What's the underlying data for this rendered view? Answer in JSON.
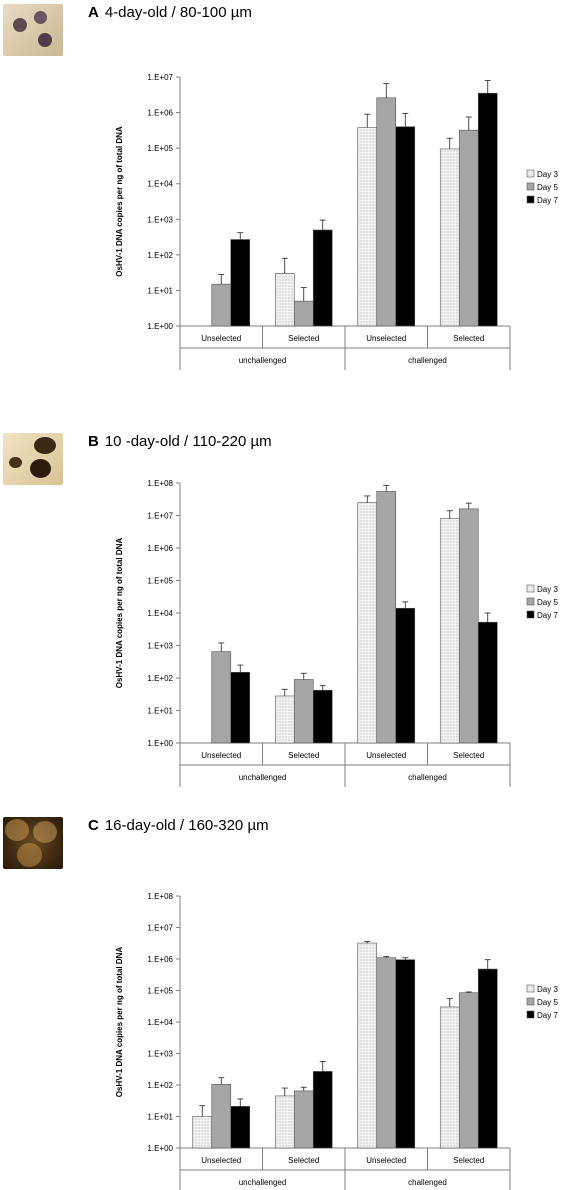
{
  "panels": [
    {
      "letter": "A",
      "title": "4-day-old / 80-100 µm",
      "ylabel": "OsHV-1 DNA copies per  ng of total DNA",
      "yticks": [
        "1.E+00",
        "1.E+01",
        "1.E+02",
        "1.E+03",
        "1.E+04",
        "1.E+05",
        "1.E+06",
        "1.E+07"
      ],
      "legend": [
        "Day 3",
        "Day 5",
        "Day 7"
      ]
    },
    {
      "letter": "B",
      "title": "10 -day-old / 110-220 µm",
      "ylabel": "OsHV-1 DNA copies per  ng of total DNA",
      "yticks": [
        "1.E+00",
        "1.E+01",
        "1.E+02",
        "1.E+03",
        "1.E+04",
        "1.E+05",
        "1.E+06",
        "1.E+07",
        "1.E+08"
      ],
      "legend": [
        "Day 3",
        "Day 5",
        "Day 7"
      ]
    },
    {
      "letter": "C",
      "title": "16-day-old / 160-320 µm",
      "ylabel": "OsHV-1 DNA copies per  ng of total DNA",
      "yticks": [
        "1.E+00",
        "1.E+01",
        "1.E+02",
        "1.E+03",
        "1.E+04",
        "1.E+05",
        "1.E+06",
        "1.E+07",
        "1.E+08"
      ],
      "legend": [
        "Day 3",
        "Day 5",
        "Day 7"
      ]
    }
  ],
  "colors": {
    "day3": "#f2f2f2",
    "day5": "#a6a6a6",
    "day7": "#000000",
    "axis": "#7f7f7f",
    "text": "#000000"
  },
  "chart_data": [
    {
      "type": "bar",
      "title": "4-day-old / 80-100 µm",
      "ylabel": "OsHV-1 DNA copies per  ng of total DNA",
      "yscale": "log",
      "ylim": [
        1,
        10000000
      ],
      "categories": [
        "Unselected",
        "Selected",
        "Unselected",
        "Selected"
      ],
      "groups": [
        {
          "label": "unchallenged",
          "span": [
            0,
            1
          ]
        },
        {
          "label": "challenged",
          "span": [
            2,
            3
          ]
        }
      ],
      "legend_position": "right",
      "series": [
        {
          "name": "Day 3",
          "values": [
            null,
            30,
            380000,
            95000
          ],
          "errors": [
            null,
            80,
            900000,
            190000
          ]
        },
        {
          "name": "Day 5",
          "values": [
            15,
            5,
            2600000,
            320000
          ],
          "errors": [
            28,
            12,
            6500000,
            750000
          ]
        },
        {
          "name": "Day 7",
          "values": [
            270,
            500,
            400000,
            3500000
          ],
          "errors": [
            420,
            950,
            950000,
            8000000
          ]
        }
      ]
    },
    {
      "type": "bar",
      "title": "10 -day-old / 110-220 µm",
      "ylabel": "OsHV-1 DNA copies per  ng of total DNA",
      "yscale": "log",
      "ylim": [
        1,
        100000000
      ],
      "categories": [
        "Unselected",
        "Selected",
        "Unselected",
        "Selected"
      ],
      "groups": [
        {
          "label": "unchallenged",
          "span": [
            0,
            1
          ]
        },
        {
          "label": "challenged",
          "span": [
            2,
            3
          ]
        }
      ],
      "legend_position": "right",
      "series": [
        {
          "name": "Day 3",
          "values": [
            null,
            28,
            25000000,
            8000000
          ],
          "errors": [
            null,
            45,
            40000000,
            14000000
          ]
        },
        {
          "name": "Day 5",
          "values": [
            650,
            90,
            55000000,
            16000000
          ],
          "errors": [
            1200,
            140,
            85000000,
            24000000
          ]
        },
        {
          "name": "Day 7",
          "values": [
            150,
            42,
            14000,
            5200
          ],
          "errors": [
            250,
            58,
            22000,
            10000
          ]
        }
      ]
    },
    {
      "type": "bar",
      "title": "16-day-old / 160-320 µm",
      "ylabel": "OsHV-1 DNA copies per  ng of total DNA",
      "yscale": "log",
      "ylim": [
        1,
        100000000
      ],
      "categories": [
        "Unselected",
        "Selected",
        "Unselected",
        "Selected"
      ],
      "groups": [
        {
          "label": "unchallenged",
          "span": [
            0,
            1
          ]
        },
        {
          "label": "challenged",
          "span": [
            2,
            3
          ]
        }
      ],
      "legend_position": "right",
      "series": [
        {
          "name": "Day 3",
          "values": [
            10,
            45,
            3200000,
            30000
          ],
          "errors": [
            22,
            80,
            3600000,
            55000
          ]
        },
        {
          "name": "Day 5",
          "values": [
            105,
            65,
            1100000,
            85000
          ],
          "errors": [
            170,
            85,
            1200000,
            90000
          ]
        },
        {
          "name": "Day 7",
          "values": [
            21,
            270,
            950000,
            480000
          ],
          "errors": [
            36,
            560,
            1100000,
            950000
          ]
        }
      ]
    }
  ]
}
